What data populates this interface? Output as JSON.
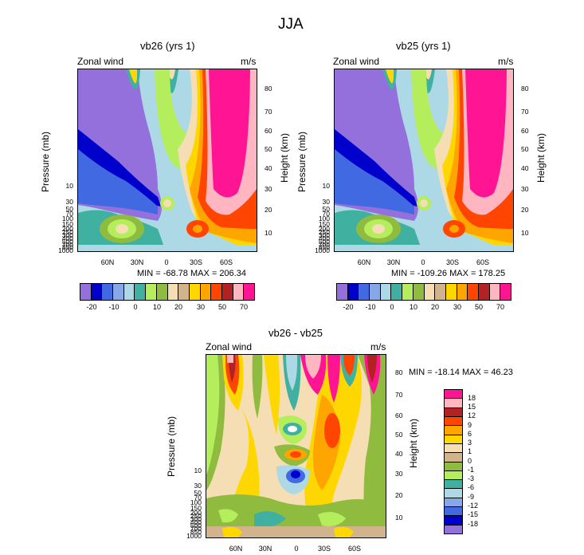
{
  "figure_title": "JJA",
  "chart_data": [
    {
      "type": "heatmap",
      "title": "vb26 (yrs 1)",
      "left_label": "Zonal wind",
      "right_label": "m/s",
      "ylabel": "Pressure (mb)",
      "y2label": "Height (km)",
      "x_ticks": [
        "60N",
        "30N",
        "0",
        "30S",
        "60S"
      ],
      "y_ticks": [
        "10",
        "30",
        "50",
        "70",
        "100",
        "150",
        "200",
        "250",
        "300",
        "400",
        "500",
        "700",
        "850",
        "1000"
      ],
      "y2_ticks": [
        "80",
        "70",
        "60",
        "50",
        "40",
        "30",
        "20",
        "10"
      ],
      "stats": "MIN = -68.78   MAX = 206.34",
      "min": -68.78,
      "max": 206.34
    },
    {
      "type": "heatmap",
      "title": "vb25 (yrs 1)",
      "left_label": "Zonal wind",
      "right_label": "m/s",
      "ylabel": "Pressure (mb)",
      "y2label": "Height (km)",
      "x_ticks": [
        "60N",
        "30N",
        "0",
        "30S",
        "60S"
      ],
      "y_ticks": [
        "10",
        "30",
        "50",
        "70",
        "100",
        "150",
        "200",
        "250",
        "300",
        "400",
        "500",
        "700",
        "850",
        "1000"
      ],
      "y2_ticks": [
        "80",
        "70",
        "60",
        "50",
        "40",
        "30",
        "20",
        "10"
      ],
      "stats": "MIN = -109.26   MAX = 178.25",
      "min": -109.26,
      "max": 178.25
    },
    {
      "type": "heatmap",
      "title": "vb26 - vb25",
      "left_label": "Zonal wind",
      "right_label": "m/s",
      "ylabel": "Pressure (mb)",
      "y2label": "Height (km)",
      "x_ticks": [
        "60N",
        "30N",
        "0",
        "30S",
        "60S"
      ],
      "y_ticks": [
        "10",
        "30",
        "50",
        "70",
        "100",
        "150",
        "200",
        "250",
        "300",
        "400",
        "500",
        "700",
        "850",
        "1000"
      ],
      "y2_ticks": [
        "80",
        "70",
        "60",
        "50",
        "40",
        "30",
        "20",
        "10"
      ],
      "stats": "MIN = -18.14   MAX = 46.23",
      "min": -18.14,
      "max": 46.23
    }
  ],
  "colorbar_top": {
    "labels": [
      "-20",
      "-10",
      "0",
      "10",
      "20",
      "30",
      "50",
      "70"
    ],
    "colors": [
      "#9370db",
      "#0000cd",
      "#4169e1",
      "#87a8e8",
      "#add8e6",
      "#40b0a0",
      "#b4ee5c",
      "#8fbc3f",
      "#f5deb3",
      "#d2b48c",
      "#ffd700",
      "#ffa500",
      "#ff4500",
      "#b22222",
      "#ffb6c1",
      "#ff1493"
    ]
  },
  "colorbar_diff": {
    "labels": [
      "18",
      "15",
      "12",
      "9",
      "6",
      "3",
      "1",
      "0",
      "-1",
      "-3",
      "-6",
      "-9",
      "-12",
      "-15",
      "-18"
    ],
    "colors": [
      "#ff1493",
      "#ffb6c1",
      "#b22222",
      "#ff4500",
      "#ffa500",
      "#ffd700",
      "#f5deb3",
      "#d2b48c",
      "#8fbc3f",
      "#b4ee5c",
      "#40b0a0",
      "#add8e6",
      "#87a8e8",
      "#4169e1",
      "#0000cd",
      "#9370db"
    ]
  }
}
